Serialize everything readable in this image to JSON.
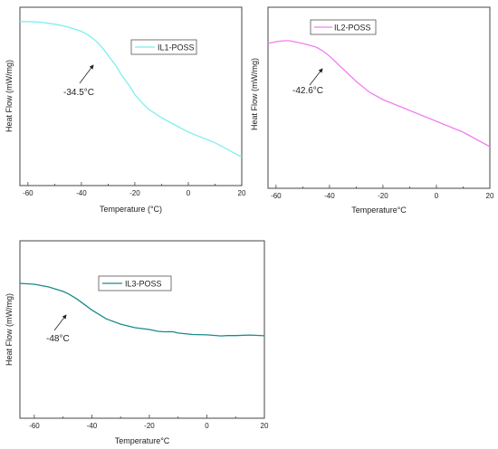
{
  "chart_data": [
    {
      "type": "line",
      "xlabel": "Temperature (°C)",
      "ylabel": "Heat Flow (mW/mg)",
      "xlim": [
        -63,
        20
      ],
      "ylim": [
        0,
        1
      ],
      "xticks": [
        -60,
        -40,
        -20,
        0,
        20
      ],
      "xtick_labels": [
        "-60",
        "-40",
        "-20",
        "0",
        "20"
      ],
      "show_yticks": false,
      "grid": false,
      "legend_position": "top-center",
      "series": [
        {
          "name": "IL1-POSS",
          "color": "#7fefef",
          "x": [
            -63,
            -60,
            -55,
            -50,
            -45,
            -40,
            -37,
            -34.5,
            -32,
            -30,
            -27,
            -25,
            -22,
            -20,
            -17,
            -15,
            -12,
            -10,
            -5,
            0,
            5,
            10,
            15,
            20
          ],
          "y": [
            0.92,
            0.92,
            0.915,
            0.905,
            0.89,
            0.865,
            0.84,
            0.81,
            0.77,
            0.73,
            0.67,
            0.62,
            0.56,
            0.51,
            0.46,
            0.43,
            0.4,
            0.38,
            0.34,
            0.3,
            0.27,
            0.24,
            0.2,
            0.16
          ]
        }
      ],
      "annotations": [
        {
          "text": "-34.5°C",
          "x": -34.5,
          "y": 0.81
        }
      ]
    },
    {
      "type": "line",
      "xlabel": "Temperature°C",
      "ylabel": "Heat Flow (mW/mg)",
      "xlim": [
        -63,
        20
      ],
      "ylim": [
        0,
        1
      ],
      "xticks": [
        -60,
        -40,
        -20,
        0,
        20
      ],
      "xtick_labels": [
        "-60",
        "-40",
        "-20",
        "0",
        "20"
      ],
      "show_yticks": false,
      "grid": false,
      "legend_position": "top-center",
      "series": [
        {
          "name": "IL2-POSS",
          "color": "#f07ff0",
          "x": [
            -63,
            -60,
            -57,
            -55,
            -50,
            -45,
            -42.6,
            -40,
            -35,
            -30,
            -25,
            -20,
            -15,
            -10,
            -5,
            0,
            5,
            10,
            15,
            20
          ],
          "y": [
            0.8,
            0.81,
            0.815,
            0.815,
            0.8,
            0.78,
            0.76,
            0.73,
            0.66,
            0.59,
            0.53,
            0.49,
            0.46,
            0.43,
            0.4,
            0.37,
            0.34,
            0.31,
            0.27,
            0.23
          ]
        }
      ],
      "annotations": [
        {
          "text": "-42.6°C",
          "x": -42.6,
          "y": 0.76
        }
      ]
    },
    {
      "type": "line",
      "xlabel": "Temperature°C",
      "ylabel": "Heat Flow (mW/mg)",
      "xlim": [
        -65,
        20
      ],
      "ylim": [
        0,
        1
      ],
      "xticks": [
        -60,
        -40,
        -20,
        0,
        20
      ],
      "xtick_labels": [
        "-60",
        "-40",
        "-20",
        "0",
        "20"
      ],
      "show_yticks": false,
      "grid": false,
      "legend_position": "top-center",
      "series": [
        {
          "name": "IL3-POSS",
          "color": "#1a8a8a",
          "x": [
            -65,
            -60,
            -55,
            -50,
            -48,
            -45,
            -40,
            -35,
            -30,
            -25,
            -20,
            -17,
            -15,
            -12,
            -10,
            -5,
            0,
            5,
            7,
            10,
            15,
            20
          ],
          "y": [
            0.76,
            0.755,
            0.74,
            0.715,
            0.7,
            0.67,
            0.61,
            0.56,
            0.53,
            0.51,
            0.5,
            0.49,
            0.487,
            0.488,
            0.48,
            0.472,
            0.47,
            0.464,
            0.466,
            0.466,
            0.469,
            0.465
          ]
        }
      ],
      "annotations": [
        {
          "text": "-48°C",
          "x": -48,
          "y": 0.7
        }
      ]
    }
  ]
}
